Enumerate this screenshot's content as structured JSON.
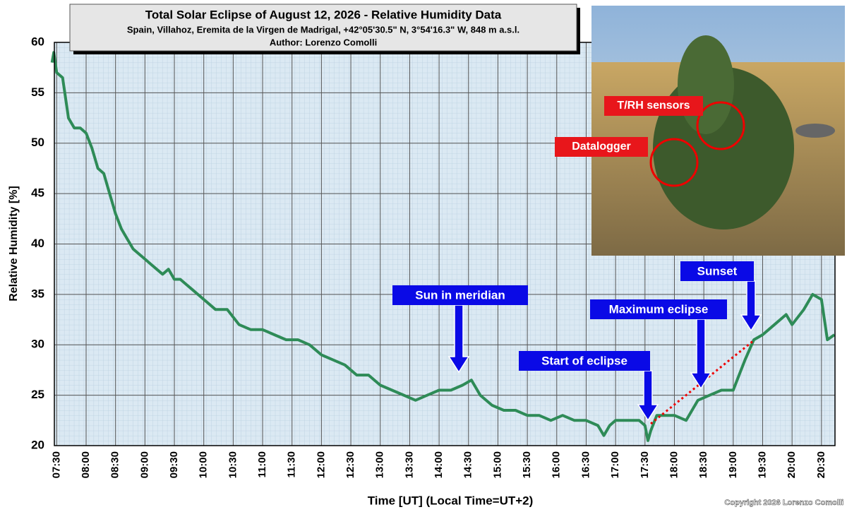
{
  "chart_data": {
    "type": "line",
    "title": "Total Solar Eclipse of August 12, 2026 - Relative Humidity Data",
    "subtitle": "Spain, Villahoz, Eremita de la Virgen de Madrigal, +42°05'30.5\" N, 3°54'16.3\" W, 848 m a.s.l.",
    "author": "Author: Lorenzo Comolli",
    "x_label": "Time [UT]  (Local Time=UT+2)",
    "y_label": "Relative Humidity [%]",
    "annotations": [
      "Sun in meridian",
      "Start of eclipse",
      "Maximum eclipse",
      "Sunset"
    ],
    "photo_labels": [
      "T/RH sensors",
      "Datalogger"
    ],
    "credit": "Copyright 2026 Lorenzo Comolli",
    "x": [
      7.42,
      7.45,
      7.5,
      7.6,
      7.7,
      7.8,
      7.9,
      8.0,
      8.1,
      8.2,
      8.3,
      8.4,
      8.5,
      8.6,
      8.7,
      8.8,
      8.9,
      9.0,
      9.1,
      9.2,
      9.3,
      9.4,
      9.5,
      9.6,
      9.7,
      9.8,
      9.9,
      10.0,
      10.2,
      10.4,
      10.6,
      10.8,
      11.0,
      11.2,
      11.4,
      11.6,
      11.8,
      12.0,
      12.2,
      12.4,
      12.6,
      12.8,
      13.0,
      13.2,
      13.4,
      13.6,
      13.8,
      14.0,
      14.2,
      14.4,
      14.55,
      14.7,
      14.9,
      15.1,
      15.3,
      15.5,
      15.7,
      15.9,
      16.1,
      16.3,
      16.5,
      16.7,
      16.8,
      16.9,
      17.0,
      17.2,
      17.4,
      17.5,
      17.55,
      17.6,
      17.7,
      17.9,
      18.0,
      18.2,
      18.4,
      18.6,
      18.8,
      19.0,
      19.1,
      19.2,
      19.35,
      19.5,
      19.7,
      19.9,
      20.0,
      20.2,
      20.35,
      20.5,
      20.6,
      20.72
    ],
    "series": [
      {
        "name": "Relative Humidity",
        "color": "#2e8b57",
        "values": [
          58,
          59,
          57,
          56.5,
          52.5,
          51.5,
          51.5,
          51,
          49.5,
          47.5,
          47,
          45,
          43,
          41.5,
          40.5,
          39.5,
          39,
          38.5,
          38,
          37.5,
          37,
          37.5,
          36.5,
          36.5,
          36,
          35.5,
          35,
          34.5,
          33.5,
          33.5,
          32,
          31.5,
          31.5,
          31,
          30.5,
          30.5,
          30,
          29,
          28.5,
          28,
          27,
          27,
          26,
          25.5,
          25,
          24.5,
          25,
          25.5,
          25.5,
          26,
          26.5,
          25,
          24,
          23.5,
          23.5,
          23,
          23,
          22.5,
          23,
          22.5,
          22.5,
          22,
          21,
          22,
          22.5,
          22.5,
          22.5,
          22,
          20.5,
          21.5,
          23,
          23,
          23,
          22.5,
          24.5,
          25,
          25.5,
          25.5,
          27,
          28.5,
          30.5,
          31,
          32,
          33,
          32,
          33.5,
          35,
          34.5,
          30.5,
          31
        ]
      }
    ],
    "xlim": [
      7.46,
      20.73
    ],
    "xticks": [
      {
        "value": 7.5,
        "label": "07:30"
      },
      {
        "value": 8,
        "label": "08:00"
      },
      {
        "value": 8.5,
        "label": "08:30"
      },
      {
        "value": 9,
        "label": "09:00"
      },
      {
        "value": 9.5,
        "label": "09:30"
      },
      {
        "value": 10,
        "label": "10:00"
      },
      {
        "value": 10.5,
        "label": "10:30"
      },
      {
        "value": 11,
        "label": "11:00"
      },
      {
        "value": 11.5,
        "label": "11:30"
      },
      {
        "value": 12,
        "label": "12:00"
      },
      {
        "value": 12.5,
        "label": "12:30"
      },
      {
        "value": 13,
        "label": "13:00"
      },
      {
        "value": 13.5,
        "label": "13:30"
      },
      {
        "value": 14,
        "label": "14:00"
      },
      {
        "value": 14.5,
        "label": "14:30"
      },
      {
        "value": 15,
        "label": "15:00"
      },
      {
        "value": 15.5,
        "label": "15:30"
      },
      {
        "value": 16,
        "label": "16:00"
      },
      {
        "value": 16.5,
        "label": "16:30"
      },
      {
        "value": 17,
        "label": "17:00"
      },
      {
        "value": 17.5,
        "label": "17:30"
      },
      {
        "value": 18,
        "label": "18:00"
      },
      {
        "value": 18.5,
        "label": "18:30"
      },
      {
        "value": 19,
        "label": "19:00"
      },
      {
        "value": 19.5,
        "label": "19:30"
      },
      {
        "value": 20,
        "label": "20:00"
      },
      {
        "value": 20.5,
        "label": "20:30"
      }
    ],
    "ylim": [
      20,
      60
    ],
    "yticks": [
      20,
      25,
      30,
      35,
      40,
      45,
      50,
      55,
      60
    ],
    "grid": true
  }
}
